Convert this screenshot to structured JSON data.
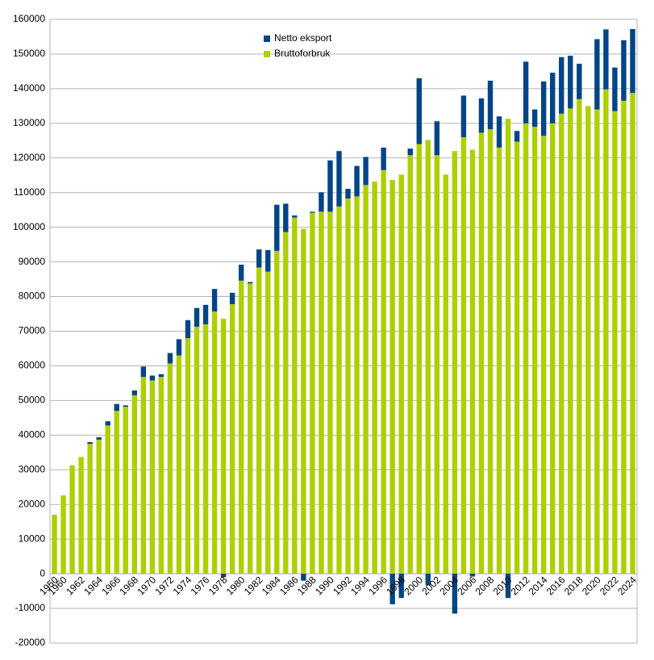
{
  "chart_data": {
    "type": "bar",
    "stacked": true,
    "categories": [
      "1950",
      "1960",
      null,
      "1962",
      null,
      "1964",
      null,
      "1966",
      null,
      "1968",
      null,
      "1970",
      null,
      "1972",
      null,
      "1974",
      null,
      "1976",
      null,
      "1978",
      null,
      "1980",
      null,
      "1982",
      null,
      "1984",
      null,
      "1986",
      null,
      "1988",
      null,
      "1990",
      null,
      "1992",
      null,
      "1994",
      null,
      "1996",
      null,
      "1998",
      null,
      "2000",
      null,
      "2002",
      null,
      "2004",
      null,
      "2006",
      null,
      "2008",
      null,
      "2010",
      null,
      "2012",
      null,
      "2014",
      null,
      "2016",
      null,
      "2018",
      null,
      "2020",
      null,
      "2022",
      null,
      "2024"
    ],
    "series": [
      {
        "name": "Netto eksport",
        "color": "#004586",
        "values": [
          0,
          0,
          0,
          0,
          500,
          700,
          1200,
          2000,
          400,
          1400,
          3000,
          1400,
          800,
          3000,
          4700,
          5200,
          5400,
          5600,
          6500,
          -1000,
          3300,
          4600,
          400,
          5200,
          6200,
          13300,
          8200,
          600,
          -2000,
          300,
          5600,
          14800,
          16000,
          2800,
          8800,
          8100,
          0,
          6500,
          -8800,
          -7000,
          1900,
          19000,
          -3300,
          9800,
          0,
          -11500,
          12000,
          -800,
          9900,
          14000,
          9000,
          -7000,
          3100,
          17800,
          5000,
          15700,
          14600,
          16300,
          15200,
          10200,
          0,
          20300,
          17300,
          12600,
          17500,
          18400
        ]
      },
      {
        "name": "Bruttoforbruk",
        "color": "#aecf00",
        "values": [
          17000,
          22600,
          31300,
          33700,
          37500,
          38700,
          42800,
          47000,
          48200,
          51500,
          56800,
          55800,
          56800,
          60700,
          63000,
          68000,
          71300,
          72000,
          75700,
          73600,
          77800,
          84600,
          83800,
          88400,
          87200,
          93200,
          98600,
          102800,
          99500,
          104200,
          104500,
          104500,
          106000,
          108300,
          108900,
          112200,
          113200,
          116500,
          113700,
          115200,
          120800,
          124000,
          125200,
          120800,
          115200,
          122000,
          126000,
          122400,
          127300,
          128300,
          123000,
          131300,
          124700,
          130000,
          129000,
          126400,
          130000,
          132800,
          134300,
          137000,
          135000,
          134000,
          139800,
          133500,
          136500,
          138800
        ]
      }
    ],
    "ylim": [
      -20000,
      160000
    ],
    "yticks": [
      -20000,
      -10000,
      0,
      10000,
      20000,
      30000,
      40000,
      50000,
      60000,
      70000,
      80000,
      90000,
      100000,
      110000,
      120000,
      130000,
      140000,
      150000,
      160000
    ],
    "grid": true,
    "legend": "top"
  }
}
